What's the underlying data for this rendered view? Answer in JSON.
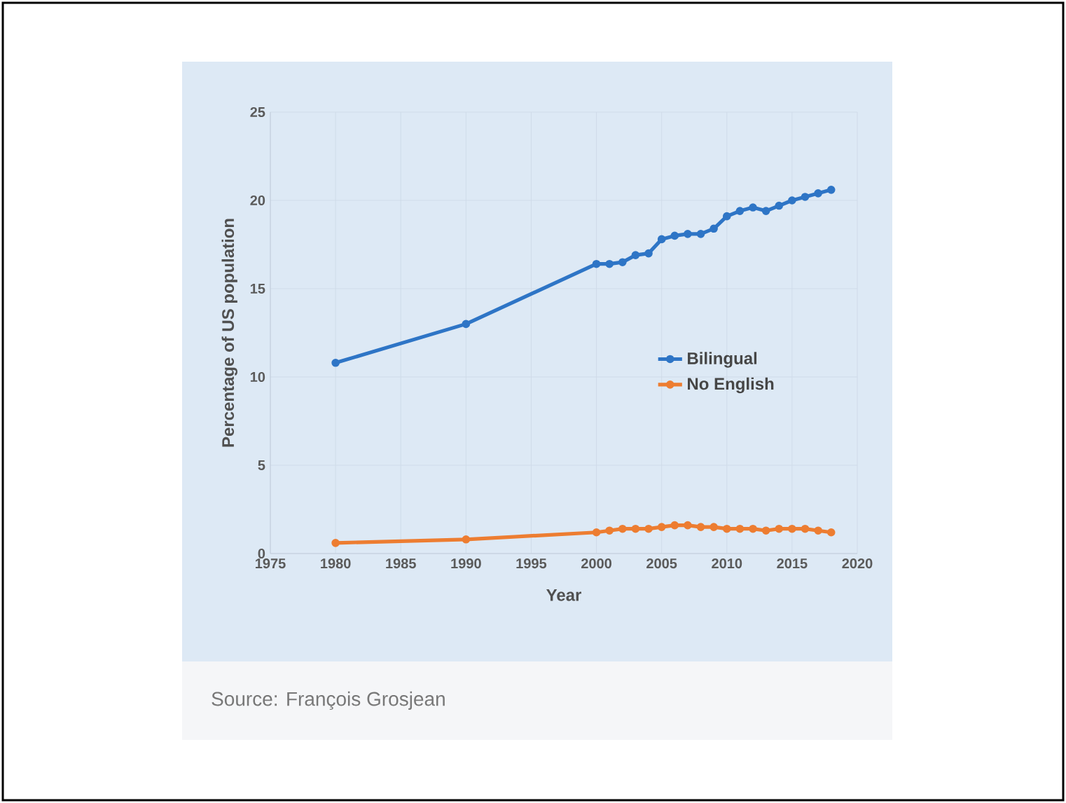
{
  "chart_data": {
    "type": "line",
    "xlabel": "Year",
    "ylabel": "Percentage of US population",
    "x": [
      1980,
      1990,
      2000,
      2001,
      2002,
      2003,
      2004,
      2005,
      2006,
      2007,
      2008,
      2009,
      2010,
      2011,
      2012,
      2013,
      2014,
      2015,
      2016,
      2017,
      2018
    ],
    "series": [
      {
        "name": "Bilingual",
        "color": "#2e75c6",
        "values": [
          10.8,
          13.0,
          16.4,
          16.4,
          16.5,
          16.9,
          17.0,
          17.8,
          18.0,
          18.1,
          18.1,
          18.4,
          19.1,
          19.4,
          19.6,
          19.4,
          19.7,
          20.0,
          20.2,
          20.4,
          20.6
        ]
      },
      {
        "name": "No English",
        "color": "#ed7d31",
        "values": [
          0.6,
          0.8,
          1.2,
          1.3,
          1.4,
          1.4,
          1.4,
          1.5,
          1.6,
          1.6,
          1.5,
          1.5,
          1.4,
          1.4,
          1.4,
          1.3,
          1.4,
          1.4,
          1.4,
          1.3,
          1.2
        ]
      }
    ],
    "xlim": [
      1975,
      2020
    ],
    "xticks": [
      1975,
      1980,
      1985,
      1990,
      1995,
      2000,
      2005,
      2010,
      2015,
      2020
    ],
    "ylim": [
      0,
      25
    ],
    "yticks": [
      0,
      5,
      10,
      15,
      20,
      25
    ],
    "grid": true,
    "legend": "right",
    "marker": "circle",
    "line_style": "solid",
    "annotations": [
      "Source: François Grosjean"
    ]
  }
}
